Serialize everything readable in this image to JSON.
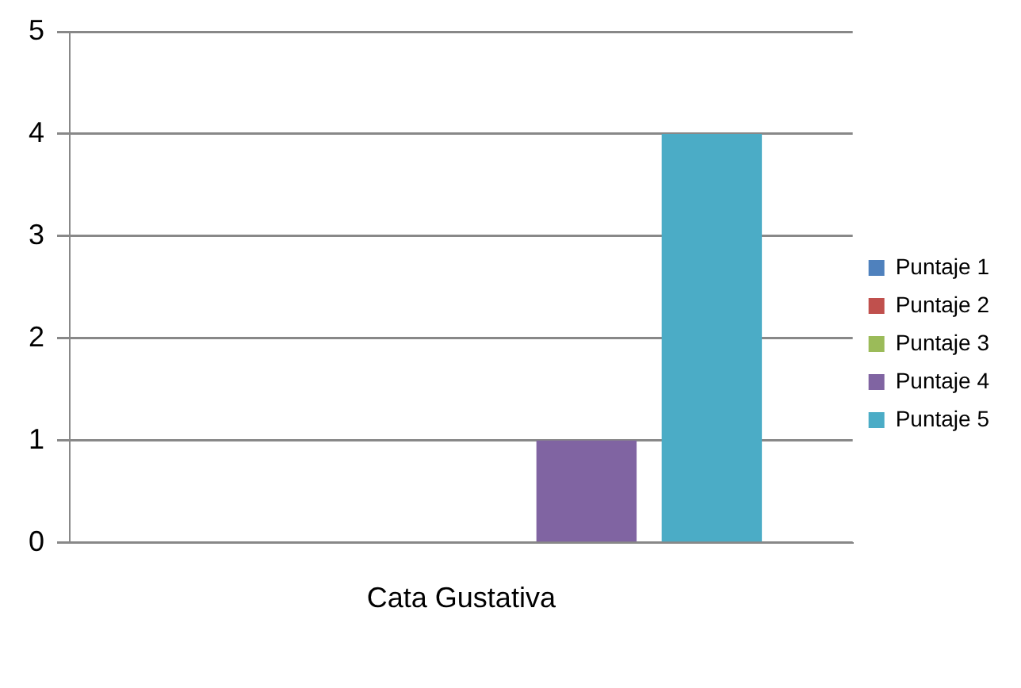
{
  "chart_data": {
    "type": "bar",
    "categories": [
      "Cata Gustativa"
    ],
    "series": [
      {
        "name": "Puntaje 1",
        "color": "#4f81bd",
        "values": [
          0
        ]
      },
      {
        "name": "Puntaje 2",
        "color": "#c0504d",
        "values": [
          0
        ]
      },
      {
        "name": "Puntaje 3",
        "color": "#9bbb59",
        "values": [
          0
        ]
      },
      {
        "name": "Puntaje 4",
        "color": "#8064a2",
        "values": [
          1
        ]
      },
      {
        "name": "Puntaje 5",
        "color": "#4bacc6",
        "values": [
          4
        ]
      }
    ],
    "ylim": [
      0,
      5
    ],
    "yticks": [
      0,
      1,
      2,
      3,
      4,
      5
    ],
    "grid": "y",
    "legend": "right"
  }
}
